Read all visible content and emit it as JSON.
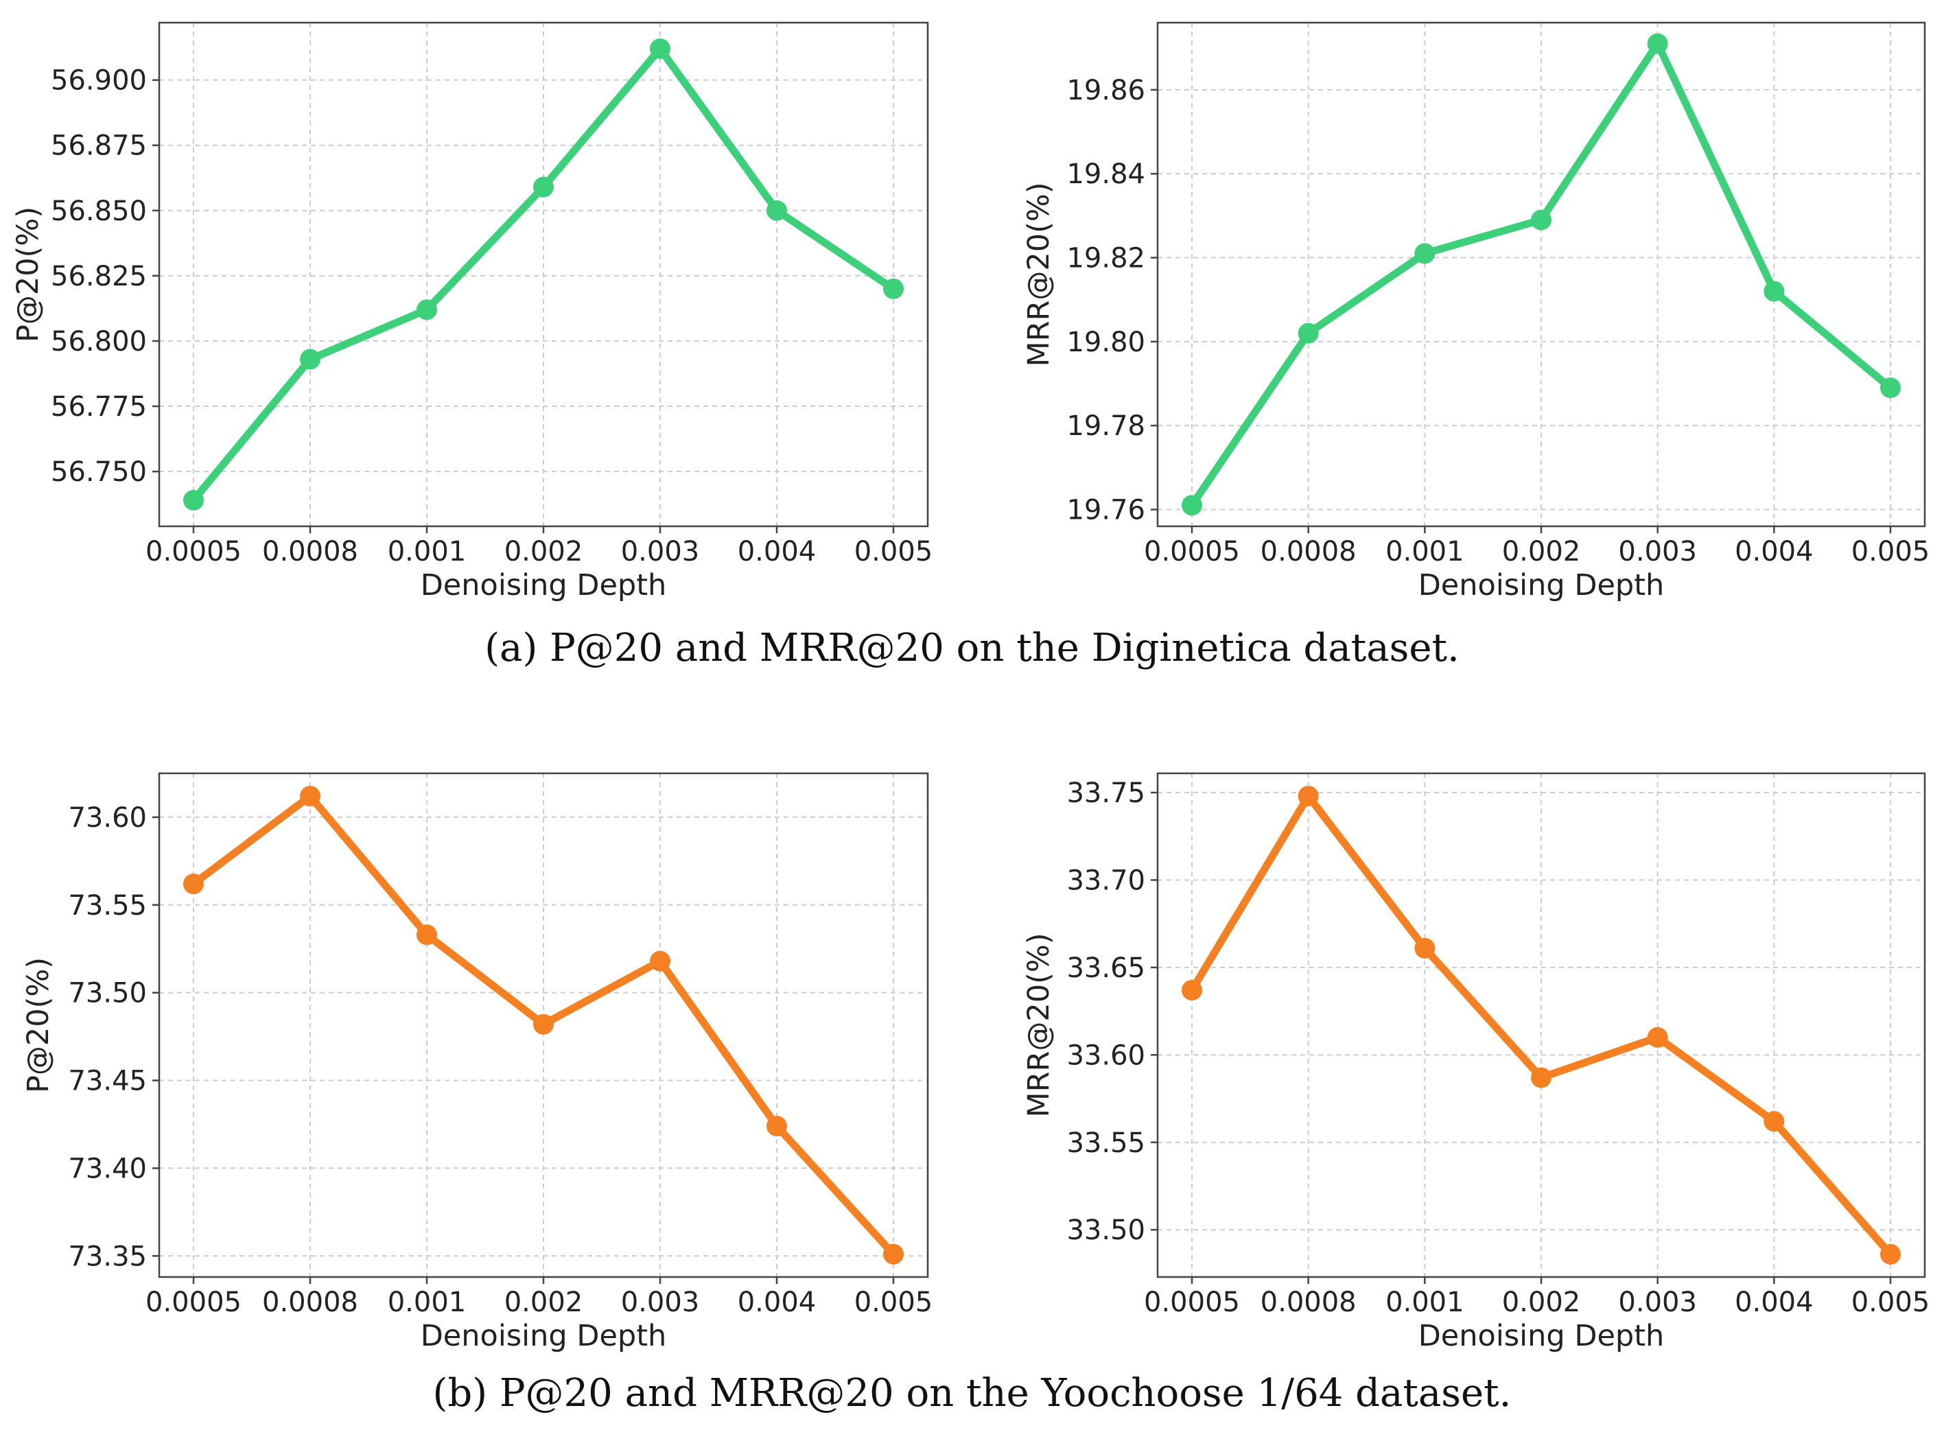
{
  "figure": {
    "caption_a": "(a)  P@20 and MRR@20 on the Diginetica dataset.",
    "caption_b": "(b)  P@20 and MRR@20 on the Yoochoose 1/64 dataset."
  },
  "colors": {
    "diginetica": "#3dd07a",
    "yoochoose": "#f58021",
    "grid": "#cccccc",
    "frame": "#444444"
  },
  "chart_data": [
    {
      "id": "a-left",
      "type": "line",
      "color": "#3dd07a",
      "xlabel": "Denoising Depth",
      "ylabel": "P@20(%)",
      "categories": [
        "0.0005",
        "0.0008",
        "0.001",
        "0.002",
        "0.003",
        "0.004",
        "0.005"
      ],
      "values": [
        56.739,
        56.793,
        56.812,
        56.859,
        56.912,
        56.85,
        56.82
      ],
      "ylim": [
        56.729,
        56.922
      ],
      "yticks": [
        56.75,
        56.775,
        56.8,
        56.825,
        56.85,
        56.875,
        56.9
      ],
      "ytick_labels": [
        "56.750",
        "56.775",
        "56.800",
        "56.825",
        "56.850",
        "56.875",
        "56.900"
      ]
    },
    {
      "id": "a-right",
      "type": "line",
      "color": "#3dd07a",
      "xlabel": "Denoising Depth",
      "ylabel": "MRR@20(%)",
      "categories": [
        "0.0005",
        "0.0008",
        "0.001",
        "0.002",
        "0.003",
        "0.004",
        "0.005"
      ],
      "values": [
        19.761,
        19.802,
        19.821,
        19.829,
        19.871,
        19.812,
        19.789
      ],
      "ylim": [
        19.756,
        19.876
      ],
      "yticks": [
        19.76,
        19.78,
        19.8,
        19.82,
        19.84,
        19.86
      ],
      "ytick_labels": [
        "19.76",
        "19.78",
        "19.80",
        "19.82",
        "19.84",
        "19.86"
      ]
    },
    {
      "id": "b-left",
      "type": "line",
      "color": "#f58021",
      "xlabel": "Denoising Depth",
      "ylabel": "P@20(%)",
      "categories": [
        "0.0005",
        "0.0008",
        "0.001",
        "0.002",
        "0.003",
        "0.004",
        "0.005"
      ],
      "values": [
        73.562,
        73.612,
        73.533,
        73.482,
        73.518,
        73.424,
        73.351
      ],
      "ylim": [
        73.338,
        73.625
      ],
      "yticks": [
        73.35,
        73.4,
        73.45,
        73.5,
        73.55,
        73.6
      ],
      "ytick_labels": [
        "73.35",
        "73.40",
        "73.45",
        "73.50",
        "73.55",
        "73.60"
      ]
    },
    {
      "id": "b-right",
      "type": "line",
      "color": "#f58021",
      "xlabel": "Denoising Depth",
      "ylabel": "MRR@20(%)",
      "categories": [
        "0.0005",
        "0.0008",
        "0.001",
        "0.002",
        "0.003",
        "0.004",
        "0.005"
      ],
      "values": [
        33.637,
        33.748,
        33.661,
        33.587,
        33.61,
        33.562,
        33.486
      ],
      "ylim": [
        33.473,
        33.761
      ],
      "yticks": [
        33.5,
        33.55,
        33.6,
        33.65,
        33.7,
        33.75
      ],
      "ytick_labels": [
        "33.50",
        "33.55",
        "33.60",
        "33.65",
        "33.70",
        "33.75"
      ]
    }
  ]
}
